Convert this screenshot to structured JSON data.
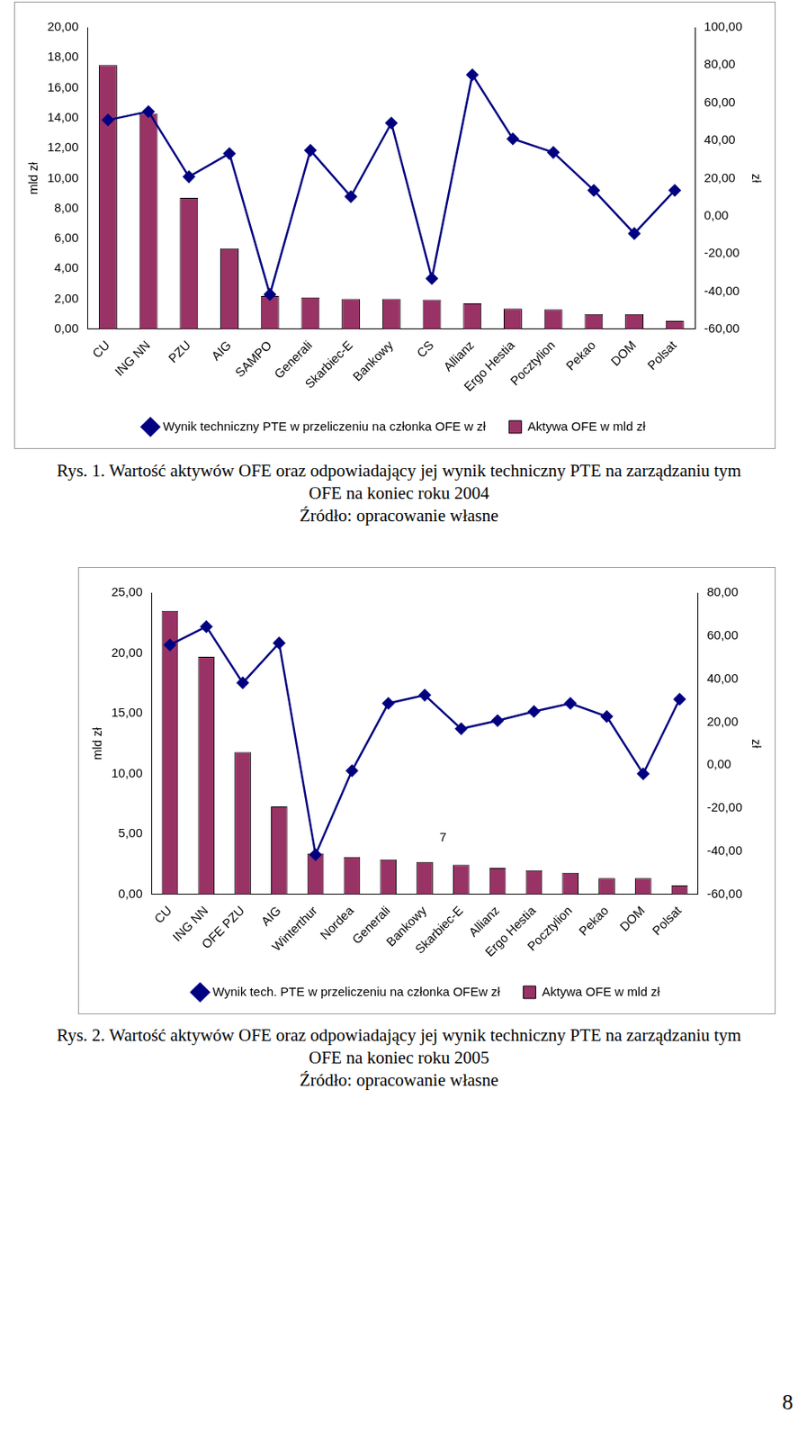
{
  "chart_data": [
    {
      "type": "bar",
      "categories": [
        "CU",
        "ING NN",
        "PZU",
        "AIG",
        "SAMPO",
        "Generali",
        "Skarbiec-E",
        "Bankowy",
        "CS",
        "Allianz",
        "Ergo Hestia",
        "Pocztylion",
        "Pekao",
        "DOM",
        "Polsat"
      ],
      "series": [
        {
          "name": "Aktywa OFE w mld zł",
          "type": "bar",
          "color": "#993366",
          "values": [
            17.5,
            14.3,
            8.7,
            5.35,
            2.2,
            2.1,
            2.0,
            2.0,
            1.95,
            1.7,
            1.35,
            1.3,
            1.0,
            1.0,
            0.55
          ]
        },
        {
          "name": "Wynik techniczny PTE w przeliczeniu na członka OFE w zł",
          "type": "line",
          "color": "#000080",
          "marker": "diamond",
          "axis": "y2",
          "values": [
            50.9,
            55.4,
            20.8,
            33.1,
            -41.6,
            34.8,
            10.3,
            49.3,
            -33.2,
            74.9,
            40.9,
            33.7,
            13.6,
            -9.3,
            13.6
          ]
        }
      ],
      "y_label": "mld zł",
      "y2_label": "zł",
      "ylim": [
        0,
        20
      ],
      "yticks": [
        {
          "value": 0,
          "label": "0,00"
        },
        {
          "value": 2,
          "label": "2,00"
        },
        {
          "value": 4,
          "label": "4,00"
        },
        {
          "value": 6,
          "label": "6,00"
        },
        {
          "value": 8,
          "label": "8,00"
        },
        {
          "value": 10,
          "label": "10,00"
        },
        {
          "value": 12,
          "label": "12,00"
        },
        {
          "value": 14,
          "label": "14,00"
        },
        {
          "value": 16,
          "label": "16,00"
        },
        {
          "value": 18,
          "label": "18,00"
        },
        {
          "value": 20,
          "label": "20,00"
        }
      ],
      "y2lim": [
        -60,
        100
      ],
      "y2ticks": [
        {
          "value": -60,
          "label": "-60,00"
        },
        {
          "value": -40,
          "label": "-40,00"
        },
        {
          "value": -20,
          "label": "-20,00"
        },
        {
          "value": 0,
          "label": "0,00"
        },
        {
          "value": 20,
          "label": "20,00"
        },
        {
          "value": 40,
          "label": "40,00"
        },
        {
          "value": 60,
          "label": "60,00"
        },
        {
          "value": 80,
          "label": "80,00"
        },
        {
          "value": 100,
          "label": "100,00"
        }
      ],
      "grid": false,
      "legend": "bottom",
      "caption": [
        "Rys. 1. Wartość aktywów OFE oraz odpowiadający jej wynik techniczny PTE na zarządzaniu tym",
        "OFE na koniec roku 2004",
        "Źródło: opracowanie własne"
      ]
    },
    {
      "type": "bar",
      "categories": [
        "CU",
        "ING NN",
        "OFE PZU",
        "AIG",
        "Winterthur",
        "Nordea",
        "Generali",
        "Bankowy",
        "Skarbiec-E",
        "Allianz",
        "Ergo Hestia",
        "Pocztylion",
        "Pekao",
        "DOM",
        "Polsat"
      ],
      "series": [
        {
          "name": "Aktywa OFE w mld zł",
          "type": "bar",
          "color": "#993366",
          "values": [
            23.5,
            19.7,
            11.8,
            7.3,
            3.4,
            3.1,
            2.9,
            2.7,
            2.45,
            2.2,
            2.0,
            1.8,
            1.35,
            1.35,
            0.75
          ]
        },
        {
          "name": "Wynik tech. PTE w przeliczeniu na członka OFEw zł",
          "type": "line",
          "color": "#000080",
          "marker": "diamond",
          "axis": "y2",
          "values": [
            55.8,
            64.3,
            38.2,
            56.7,
            -41.5,
            -2.6,
            28.7,
            32.5,
            16.9,
            20.7,
            24.9,
            28.7,
            22.6,
            -4.0,
            30.6
          ]
        }
      ],
      "y_label": "mld zł",
      "y2_label": "zł",
      "ylim": [
        0,
        25
      ],
      "yticks": [
        {
          "value": 0,
          "label": "0,00"
        },
        {
          "value": 5,
          "label": "5,00"
        },
        {
          "value": 10,
          "label": "10,00"
        },
        {
          "value": 15,
          "label": "15,00"
        },
        {
          "value": 20,
          "label": "20,00"
        },
        {
          "value": 25,
          "label": "25,00"
        }
      ],
      "y2lim": [
        -60,
        80
      ],
      "y2ticks": [
        {
          "value": -60,
          "label": "-60,00"
        },
        {
          "value": -40,
          "label": "-40,00"
        },
        {
          "value": -20,
          "label": "-20,00"
        },
        {
          "value": 0,
          "label": "0,00"
        },
        {
          "value": 20,
          "label": "20,00"
        },
        {
          "value": 40,
          "label": "40,00"
        },
        {
          "value": 60,
          "label": "60,00"
        },
        {
          "value": 80,
          "label": "80,00"
        }
      ],
      "annotations": [
        {
          "text": "7",
          "x": 7.5,
          "y": 4.7
        }
      ],
      "grid": false,
      "legend": "bottom",
      "caption": [
        "Rys. 2. Wartość aktywów OFE oraz odpowiadający jej wynik techniczny PTE na zarządzaniu tym",
        "OFE na koniec roku 2005",
        "Źródło: opracowanie własne"
      ]
    }
  ],
  "page_number": "8"
}
